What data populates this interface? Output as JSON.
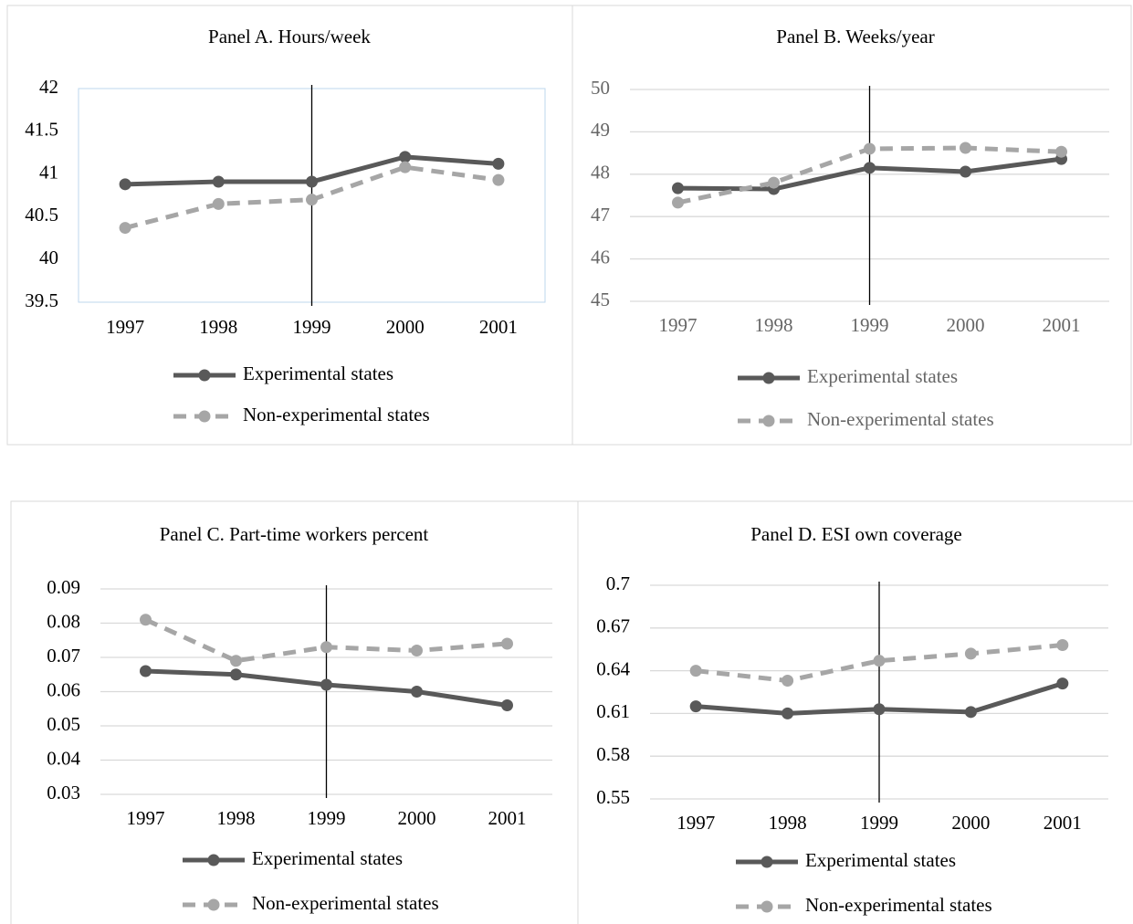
{
  "chart_data": [
    {
      "type": "line",
      "title": "Panel A. Hours/week",
      "categories": [
        "1997",
        "1998",
        "1999",
        "2000",
        "2001"
      ],
      "series": [
        {
          "name": "Experimental states",
          "color": "#595959",
          "line_style": "solid",
          "values": [
            40.88,
            40.91,
            40.91,
            41.2,
            41.12
          ]
        },
        {
          "name": "Non-experimental states",
          "color": "#a6a6a6",
          "line_style": "dashed",
          "values": [
            40.37,
            40.65,
            40.7,
            41.08,
            40.93
          ]
        }
      ],
      "ylim": [
        39.5,
        42
      ],
      "yticks": [
        39.5,
        40,
        40.5,
        41,
        41.5,
        42
      ],
      "grid": false,
      "vline": "1999"
    },
    {
      "type": "line",
      "title": "Panel B. Weeks/year",
      "categories": [
        "1997",
        "1998",
        "1999",
        "2000",
        "2001"
      ],
      "series": [
        {
          "name": "Experimental states",
          "color": "#595959",
          "line_style": "solid",
          "values": [
            47.67,
            47.65,
            48.15,
            48.06,
            48.36
          ]
        },
        {
          "name": "Non-experimental states",
          "color": "#a6a6a6",
          "line_style": "dashed",
          "values": [
            47.33,
            47.8,
            48.6,
            48.62,
            48.53
          ]
        }
      ],
      "ylim": [
        45,
        50
      ],
      "yticks": [
        45,
        46,
        47,
        48,
        49,
        50
      ],
      "grid": true,
      "vline": "1999"
    },
    {
      "type": "line",
      "title": "Panel C. Part-time workers percent",
      "categories": [
        "1997",
        "1998",
        "1999",
        "2000",
        "2001"
      ],
      "series": [
        {
          "name": "Experimental states",
          "color": "#595959",
          "line_style": "solid",
          "values": [
            0.066,
            0.065,
            0.062,
            0.06,
            0.056
          ]
        },
        {
          "name": "Non-experimental states",
          "color": "#a6a6a6",
          "line_style": "dashed",
          "values": [
            0.081,
            0.069,
            0.073,
            0.072,
            0.074
          ]
        }
      ],
      "ylim": [
        0.03,
        0.09
      ],
      "yticks": [
        0.03,
        0.04,
        0.05,
        0.06,
        0.07,
        0.08,
        0.09
      ],
      "grid": true,
      "vline": "1999"
    },
    {
      "type": "line",
      "title": "Panel D. ESI own coverage",
      "categories": [
        "1997",
        "1998",
        "1999",
        "2000",
        "2001"
      ],
      "series": [
        {
          "name": "Experimental states",
          "color": "#595959",
          "line_style": "solid",
          "values": [
            0.615,
            0.61,
            0.613,
            0.611,
            0.631
          ]
        },
        {
          "name": "Non-experimental states",
          "color": "#a6a6a6",
          "line_style": "dashed",
          "values": [
            0.64,
            0.633,
            0.647,
            0.652,
            0.658
          ]
        }
      ],
      "ylim": [
        0.55,
        0.7
      ],
      "yticks": [
        0.55,
        0.58,
        0.61,
        0.64,
        0.67,
        0.7
      ],
      "grid": true,
      "vline": "1999"
    }
  ]
}
